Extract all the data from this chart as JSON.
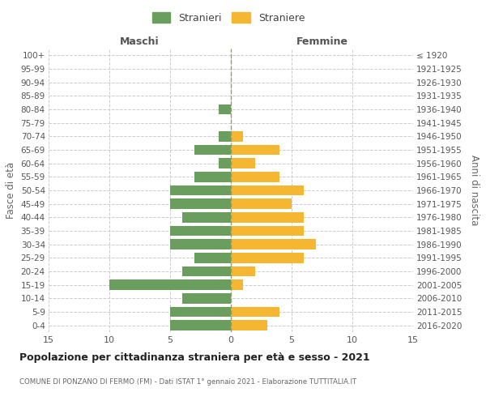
{
  "age_groups": [
    "0-4",
    "5-9",
    "10-14",
    "15-19",
    "20-24",
    "25-29",
    "30-34",
    "35-39",
    "40-44",
    "45-49",
    "50-54",
    "55-59",
    "60-64",
    "65-69",
    "70-74",
    "75-79",
    "80-84",
    "85-89",
    "90-94",
    "95-99",
    "100+"
  ],
  "birth_years": [
    "2016-2020",
    "2011-2015",
    "2006-2010",
    "2001-2005",
    "1996-2000",
    "1991-1995",
    "1986-1990",
    "1981-1985",
    "1976-1980",
    "1971-1975",
    "1966-1970",
    "1961-1965",
    "1956-1960",
    "1951-1955",
    "1946-1950",
    "1941-1945",
    "1936-1940",
    "1931-1935",
    "1926-1930",
    "1921-1925",
    "≤ 1920"
  ],
  "males": [
    5,
    5,
    4,
    10,
    4,
    3,
    5,
    5,
    4,
    5,
    5,
    3,
    1,
    3,
    1,
    0,
    1,
    0,
    0,
    0,
    0
  ],
  "females": [
    3,
    4,
    0,
    1,
    2,
    6,
    7,
    6,
    6,
    5,
    6,
    4,
    2,
    4,
    1,
    0,
    0,
    0,
    0,
    0,
    0
  ],
  "male_color": "#6a9e5e",
  "female_color": "#f5b731",
  "background_color": "#ffffff",
  "grid_color": "#cccccc",
  "title": "Popolazione per cittadinanza straniera per età e sesso - 2021",
  "subtitle": "COMUNE DI PONZANO DI FERMO (FM) - Dati ISTAT 1° gennaio 2021 - Elaborazione TUTTITALIA.IT",
  "xlabel_left": "Maschi",
  "xlabel_right": "Femmine",
  "ylabel_left": "Fasce di età",
  "ylabel_right": "Anni di nascita",
  "legend_males": "Stranieri",
  "legend_females": "Straniere",
  "xlim": 15
}
